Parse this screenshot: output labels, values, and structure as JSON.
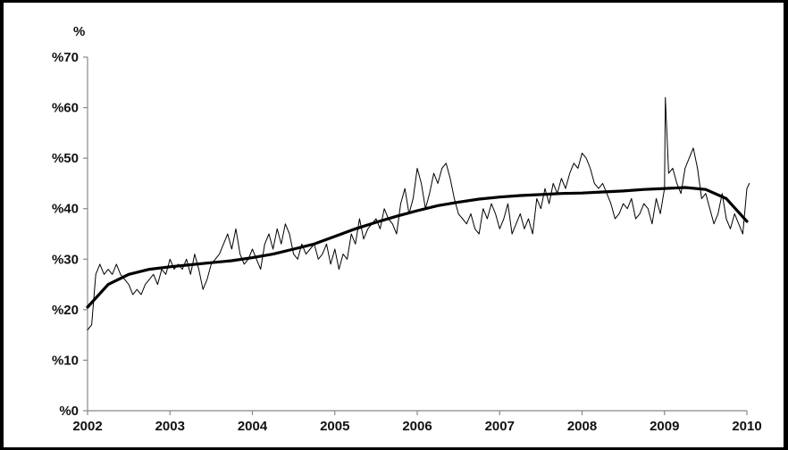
{
  "chart_data": {
    "type": "line",
    "y_unit_label": "%",
    "ylim": [
      0,
      70
    ],
    "y_ticks": [
      {
        "value": 0,
        "label": "%0"
      },
      {
        "value": 10,
        "label": "%10"
      },
      {
        "value": 20,
        "label": "%20"
      },
      {
        "value": 30,
        "label": "%30"
      },
      {
        "value": 40,
        "label": "%40"
      },
      {
        "value": 50,
        "label": "%50"
      },
      {
        "value": 60,
        "label": "%60"
      },
      {
        "value": 70,
        "label": "%70"
      }
    ],
    "xlim": [
      2002,
      2010
    ],
    "x_ticks": [
      {
        "value": 2002,
        "label": "2002"
      },
      {
        "value": 2003,
        "label": "2003"
      },
      {
        "value": 2004,
        "label": "2004"
      },
      {
        "value": 2005,
        "label": "2005"
      },
      {
        "value": 2006,
        "label": "2006"
      },
      {
        "value": 2007,
        "label": "2007"
      },
      {
        "value": 2008,
        "label": "2008"
      },
      {
        "value": 2009,
        "label": "2009"
      },
      {
        "value": 2010,
        "label": "2010"
      }
    ],
    "grid": false,
    "legend": "none",
    "series": [
      {
        "kind": "weekly-observed",
        "color": "#000000",
        "x": [
          2002.0,
          2002.05,
          2002.1,
          2002.15,
          2002.2,
          2002.25,
          2002.3,
          2002.35,
          2002.4,
          2002.45,
          2002.5,
          2002.55,
          2002.6,
          2002.65,
          2002.7,
          2002.75,
          2002.8,
          2002.85,
          2002.9,
          2002.95,
          2003.0,
          2003.05,
          2003.1,
          2003.15,
          2003.2,
          2003.25,
          2003.3,
          2003.35,
          2003.4,
          2003.45,
          2003.5,
          2003.55,
          2003.6,
          2003.65,
          2003.7,
          2003.75,
          2003.8,
          2003.85,
          2003.9,
          2003.95,
          2004.0,
          2004.05,
          2004.1,
          2004.15,
          2004.2,
          2004.25,
          2004.3,
          2004.35,
          2004.4,
          2004.45,
          2004.5,
          2004.55,
          2004.6,
          2004.65,
          2004.7,
          2004.75,
          2004.8,
          2004.85,
          2004.9,
          2004.95,
          2005.0,
          2005.05,
          2005.1,
          2005.15,
          2005.2,
          2005.25,
          2005.3,
          2005.35,
          2005.4,
          2005.45,
          2005.5,
          2005.55,
          2005.6,
          2005.65,
          2005.7,
          2005.75,
          2005.8,
          2005.85,
          2005.9,
          2005.95,
          2006.0,
          2006.05,
          2006.1,
          2006.15,
          2006.2,
          2006.25,
          2006.3,
          2006.35,
          2006.4,
          2006.45,
          2006.5,
          2006.55,
          2006.6,
          2006.65,
          2006.7,
          2006.75,
          2006.8,
          2006.85,
          2006.9,
          2006.95,
          2007.0,
          2007.05,
          2007.1,
          2007.15,
          2007.2,
          2007.25,
          2007.3,
          2007.35,
          2007.4,
          2007.45,
          2007.5,
          2007.55,
          2007.6,
          2007.65,
          2007.7,
          2007.75,
          2007.8,
          2007.85,
          2007.9,
          2007.95,
          2008.0,
          2008.05,
          2008.1,
          2008.15,
          2008.2,
          2008.25,
          2008.3,
          2008.35,
          2008.4,
          2008.45,
          2008.5,
          2008.55,
          2008.6,
          2008.65,
          2008.7,
          2008.75,
          2008.8,
          2008.85,
          2008.9,
          2008.95,
          2009.0,
          2009.01,
          2009.05,
          2009.1,
          2009.15,
          2009.2,
          2009.25,
          2009.3,
          2009.35,
          2009.4,
          2009.45,
          2009.5,
          2009.55,
          2009.6,
          2009.65,
          2009.7,
          2009.75,
          2009.8,
          2009.85,
          2009.9,
          2009.95,
          2010.0,
          2010.03
        ],
        "y": [
          16,
          17,
          27,
          29,
          27,
          28,
          27,
          29,
          27,
          26,
          25,
          23,
          24,
          23,
          25,
          26,
          27,
          25,
          28,
          27,
          30,
          28,
          29,
          28,
          30,
          27,
          31,
          28,
          24,
          26,
          29,
          30,
          31,
          33,
          35,
          32,
          36,
          31,
          29,
          30,
          32,
          30,
          28,
          33,
          35,
          32,
          36,
          33,
          37,
          35,
          31,
          30,
          33,
          31,
          32,
          33,
          30,
          31,
          33,
          29,
          32,
          28,
          31,
          30,
          35,
          33,
          38,
          34,
          36,
          37,
          38,
          36,
          40,
          38,
          37,
          35,
          41,
          44,
          39,
          42,
          48,
          45,
          40,
          43,
          47,
          45,
          48,
          49,
          46,
          42,
          39,
          38,
          37,
          39,
          36,
          35,
          40,
          38,
          41,
          39,
          36,
          38,
          41,
          35,
          37,
          39,
          36,
          38,
          35,
          42,
          40,
          44,
          41,
          45,
          43,
          46,
          44,
          47,
          49,
          48,
          51,
          50,
          48,
          45,
          44,
          45,
          43,
          41,
          38,
          39,
          41,
          40,
          42,
          38,
          39,
          41,
          40,
          37,
          42,
          39,
          44,
          62,
          47,
          48,
          45,
          43,
          48,
          50,
          52,
          48,
          42,
          43,
          40,
          37,
          39,
          43,
          38,
          36,
          39,
          37,
          35,
          44,
          45
        ]
      },
      {
        "kind": "trend",
        "color": "#000000",
        "x": [
          2002.0,
          2002.25,
          2002.5,
          2002.75,
          2003.0,
          2003.25,
          2003.5,
          2003.75,
          2004.0,
          2004.25,
          2004.5,
          2004.75,
          2005.0,
          2005.25,
          2005.5,
          2005.75,
          2006.0,
          2006.25,
          2006.5,
          2006.75,
          2007.0,
          2007.25,
          2007.5,
          2007.75,
          2008.0,
          2008.25,
          2008.5,
          2008.75,
          2009.0,
          2009.25,
          2009.5,
          2009.75,
          2010.0
        ],
        "y": [
          20.5,
          25.0,
          27.0,
          28.0,
          28.5,
          28.9,
          29.3,
          29.7,
          30.3,
          31.0,
          32.0,
          33.0,
          34.5,
          36.0,
          37.3,
          38.5,
          39.6,
          40.6,
          41.3,
          41.9,
          42.3,
          42.6,
          42.8,
          43.0,
          43.1,
          43.3,
          43.5,
          43.8,
          44.0,
          44.2,
          43.8,
          42.0,
          37.5
        ]
      }
    ]
  }
}
